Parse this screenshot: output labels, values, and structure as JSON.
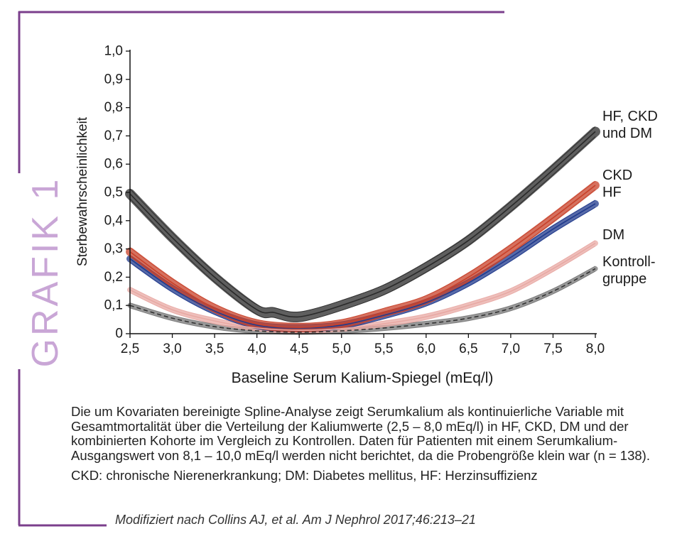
{
  "figure_label": "GRAFIK 1",
  "caption": "Die um Kovariaten bereinigte Spline-Analyse zeigt Serumkalium als kontinuierliche Variable mit Gesamtmortalität über die Verteilung der Kaliumwerte (2,5 – 8,0 mEq/l) in HF, CKD, DM und der kombinierten Kohorte im Vergleich zu Kontrollen. Daten für Patienten mit einem Serumkalium-Ausgangswert von 8,1 – 10,0 mEq/l werden nicht berichtet, da die Probengröße klein war (n = 138).",
  "abbreviations": "CKD: chronische Nierenerkrankung; DM: Diabetes mellitus, HF: Herzinsuffizienz",
  "source": "Modifiziert nach Collins AJ, et al. Am J Nephrol 2017;46:213–21",
  "colors": {
    "frame": "#7b3f8c",
    "grafik": "#c9a6d6",
    "combined": "#2a2a2a",
    "ckd": "#c8412a",
    "hf": "#203a8c",
    "dm": "#e8a9a4",
    "control": "#777777"
  },
  "chart_data": {
    "type": "line",
    "xlabel": "Baseline Serum Kalium-Spiegel (mEq/l)",
    "ylabel": "Sterbewahrscheinlichkeit",
    "xlim": [
      2.5,
      8.0
    ],
    "ylim": [
      0,
      1.0
    ],
    "x_ticks": [
      "2,5",
      "3,0",
      "3,5",
      "4,0",
      "4,5",
      "5,0",
      "5,5",
      "6,0",
      "6,5",
      "7,0",
      "7,5",
      "8,0"
    ],
    "y_ticks": [
      "0",
      "0,1",
      "0,2",
      "0,3",
      "0,4",
      "0,5",
      "0,6",
      "0,7",
      "0,8",
      "0,9",
      "1,0"
    ],
    "grid": false,
    "series": [
      {
        "name": "HF, CKD und DM",
        "label_lines": [
          "HF, CKD",
          "und DM"
        ],
        "color": "#2a2a2a",
        "band": 0.035,
        "dashed": false,
        "x": [
          2.5,
          3.0,
          3.5,
          4.0,
          4.2,
          4.4,
          4.6,
          5.0,
          5.5,
          6.0,
          6.5,
          7.0,
          7.5,
          8.0
        ],
        "y": [
          0.495,
          0.34,
          0.2,
          0.085,
          0.075,
          0.06,
          0.065,
          0.1,
          0.155,
          0.235,
          0.33,
          0.45,
          0.58,
          0.715
        ]
      },
      {
        "name": "CKD",
        "label_lines": [
          "CKD"
        ],
        "color": "#c8412a",
        "band": 0.03,
        "dashed": false,
        "x": [
          2.5,
          3.0,
          3.5,
          4.0,
          4.5,
          5.0,
          5.5,
          6.0,
          6.5,
          7.0,
          7.5,
          8.0
        ],
        "y": [
          0.29,
          0.18,
          0.09,
          0.035,
          0.022,
          0.035,
          0.075,
          0.12,
          0.2,
          0.3,
          0.41,
          0.525
        ]
      },
      {
        "name": "HF",
        "label_lines": [
          "HF"
        ],
        "color": "#203a8c",
        "band": 0.025,
        "dashed": false,
        "x": [
          2.5,
          3.0,
          3.5,
          4.0,
          4.5,
          5.0,
          5.5,
          6.0,
          6.5,
          7.0,
          7.5,
          8.0
        ],
        "y": [
          0.265,
          0.16,
          0.08,
          0.03,
          0.02,
          0.03,
          0.065,
          0.11,
          0.18,
          0.27,
          0.37,
          0.46
        ]
      },
      {
        "name": "DM",
        "label_lines": [
          "DM"
        ],
        "color": "#e8a9a4",
        "band": 0.02,
        "dashed": false,
        "x": [
          2.5,
          3.0,
          3.5,
          4.0,
          4.5,
          5.0,
          5.5,
          6.0,
          6.5,
          7.0,
          7.5,
          8.0
        ],
        "y": [
          0.155,
          0.085,
          0.045,
          0.02,
          0.012,
          0.018,
          0.035,
          0.06,
          0.1,
          0.15,
          0.23,
          0.32
        ]
      },
      {
        "name": "Kontrollgruppe",
        "label_lines": [
          "Kontroll-",
          "gruppe"
        ],
        "color": "#777777",
        "band": 0.018,
        "dashed": true,
        "x": [
          2.5,
          3.0,
          3.5,
          4.0,
          4.5,
          5.0,
          5.5,
          6.0,
          6.5,
          7.0,
          7.5,
          8.0
        ],
        "y": [
          0.1,
          0.055,
          0.025,
          0.01,
          0.005,
          0.01,
          0.02,
          0.035,
          0.055,
          0.09,
          0.15,
          0.23
        ]
      }
    ]
  }
}
